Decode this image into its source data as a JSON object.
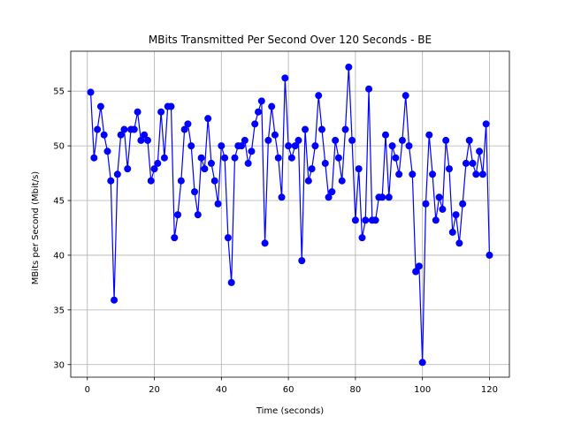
{
  "chart_data": {
    "type": "line",
    "title": "MBits Transmitted Per Second Over 120 Seconds - BE",
    "xlabel": "Time (seconds)",
    "ylabel": "MBits per Second (Mbit/s)",
    "xlim": [
      -4.95,
      125.95
    ],
    "ylim": [
      28.85,
      58.65
    ],
    "xticks": [
      0,
      20,
      40,
      60,
      80,
      100,
      120
    ],
    "yticks": [
      30,
      35,
      40,
      45,
      50,
      55
    ],
    "grid": true,
    "legend": "none",
    "colors": {
      "line": "#0000ff",
      "marker": "#0000ff",
      "grid": "#b0b0b0"
    },
    "series": [
      {
        "marker": "circle",
        "x": [
          1,
          2,
          3,
          4,
          5,
          6,
          7,
          8,
          9,
          10,
          11,
          12,
          13,
          14,
          15,
          16,
          17,
          18,
          19,
          20,
          21,
          22,
          23,
          24,
          25,
          26,
          27,
          28,
          29,
          30,
          31,
          32,
          33,
          34,
          35,
          36,
          37,
          38,
          39,
          40,
          41,
          42,
          43,
          44,
          45,
          46,
          47,
          48,
          49,
          50,
          51,
          52,
          53,
          54,
          55,
          56,
          57,
          58,
          59,
          60,
          61,
          62,
          63,
          64,
          65,
          66,
          67,
          68,
          69,
          70,
          71,
          72,
          73,
          74,
          75,
          76,
          77,
          78,
          79,
          80,
          81,
          82,
          83,
          84,
          85,
          86,
          87,
          88,
          89,
          90,
          91,
          92,
          93,
          94,
          95,
          96,
          97,
          98,
          99,
          100,
          101,
          102,
          103,
          104,
          105,
          106,
          107,
          108,
          109,
          110,
          111,
          112,
          113,
          114,
          115,
          116,
          117,
          118,
          119,
          120
        ],
        "y": [
          54.9,
          48.9,
          51.5,
          53.6,
          51.0,
          49.5,
          46.8,
          35.9,
          47.4,
          51.0,
          51.5,
          47.9,
          51.5,
          51.5,
          53.1,
          50.5,
          51.0,
          50.5,
          46.8,
          47.9,
          48.4,
          53.1,
          48.9,
          53.6,
          53.6,
          41.6,
          43.7,
          46.8,
          51.5,
          52.0,
          50.0,
          45.8,
          43.7,
          48.9,
          47.9,
          52.5,
          48.4,
          46.8,
          44.7,
          50.0,
          48.9,
          41.6,
          37.5,
          48.9,
          50.0,
          50.0,
          50.5,
          48.4,
          49.5,
          52.0,
          53.1,
          54.1,
          41.1,
          50.5,
          53.6,
          51.0,
          48.9,
          45.3,
          56.2,
          50.0,
          48.9,
          50.0,
          50.5,
          39.5,
          51.5,
          46.8,
          47.9,
          50.0,
          54.6,
          51.5,
          48.4,
          45.3,
          45.8,
          50.5,
          48.9,
          46.8,
          51.5,
          57.2,
          50.5,
          43.2,
          47.9,
          41.6,
          43.2,
          55.2,
          43.2,
          43.2,
          45.3,
          45.3,
          51.0,
          45.3,
          50.0,
          48.9,
          47.4,
          50.5,
          54.6,
          50.0,
          47.4,
          38.5,
          39.0,
          30.2,
          44.7,
          51.0,
          47.4,
          43.2,
          45.3,
          44.2,
          50.5,
          47.9,
          42.1,
          43.7,
          41.1,
          44.7,
          48.4,
          50.5,
          48.4,
          47.4,
          49.5,
          47.4,
          52.0,
          40.0
        ]
      }
    ]
  }
}
